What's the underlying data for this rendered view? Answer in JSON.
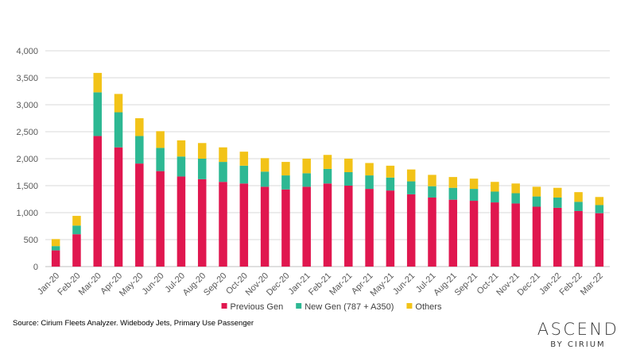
{
  "chart_data": {
    "type": "bar",
    "stacked": true,
    "categories": [
      "Jan-20",
      "Feb-20",
      "Mar-20",
      "Apr-20",
      "May-20",
      "Jun-20",
      "Jul-20",
      "Aug-20",
      "Sep-20",
      "Oct-20",
      "Nov-20",
      "Dec-20",
      "Jan-21",
      "Feb-21",
      "Mar-21",
      "Apr-21",
      "May-21",
      "Jun-21",
      "Jul-21",
      "Aug-21",
      "Sep-21",
      "Oct-21",
      "Nov-21",
      "Dec-21",
      "Jan-22",
      "Feb-22",
      "Mar-22"
    ],
    "series": [
      {
        "name": "Previous Gen",
        "color": "#e0174f",
        "values": [
          300,
          600,
          2420,
          2210,
          1910,
          1770,
          1670,
          1620,
          1570,
          1540,
          1480,
          1430,
          1480,
          1540,
          1500,
          1440,
          1410,
          1340,
          1280,
          1240,
          1220,
          1190,
          1170,
          1110,
          1090,
          1030,
          990
        ]
      },
      {
        "name": "New Gen (787 + A350)",
        "color": "#2db893",
        "values": [
          80,
          160,
          810,
          650,
          510,
          430,
          370,
          380,
          370,
          330,
          280,
          260,
          250,
          270,
          250,
          250,
          240,
          240,
          210,
          220,
          220,
          200,
          190,
          190,
          190,
          170,
          150
        ]
      },
      {
        "name": "Others",
        "color": "#f2c318",
        "values": [
          130,
          180,
          360,
          340,
          330,
          310,
          300,
          290,
          270,
          260,
          250,
          250,
          270,
          260,
          250,
          230,
          220,
          220,
          210,
          200,
          190,
          180,
          180,
          180,
          180,
          180,
          150
        ]
      }
    ],
    "ylim": [
      0,
      4000
    ],
    "yticks": [
      "0",
      "500",
      "1,000",
      "1,500",
      "2,000",
      "2,500",
      "3,000",
      "3,500",
      "4,000"
    ],
    "ytick_values": [
      0,
      500,
      1000,
      1500,
      2000,
      2500,
      3000,
      3500,
      4000
    ],
    "grid": true,
    "legend_position": "bottom",
    "title": "",
    "xlabel": "",
    "ylabel": ""
  },
  "source_text": "Source: Cirium Fleets Analyzer. Widebody Jets, Primary Use Passenger",
  "logo": {
    "main": "ASCEND",
    "sub": "BY CIRIUM"
  }
}
